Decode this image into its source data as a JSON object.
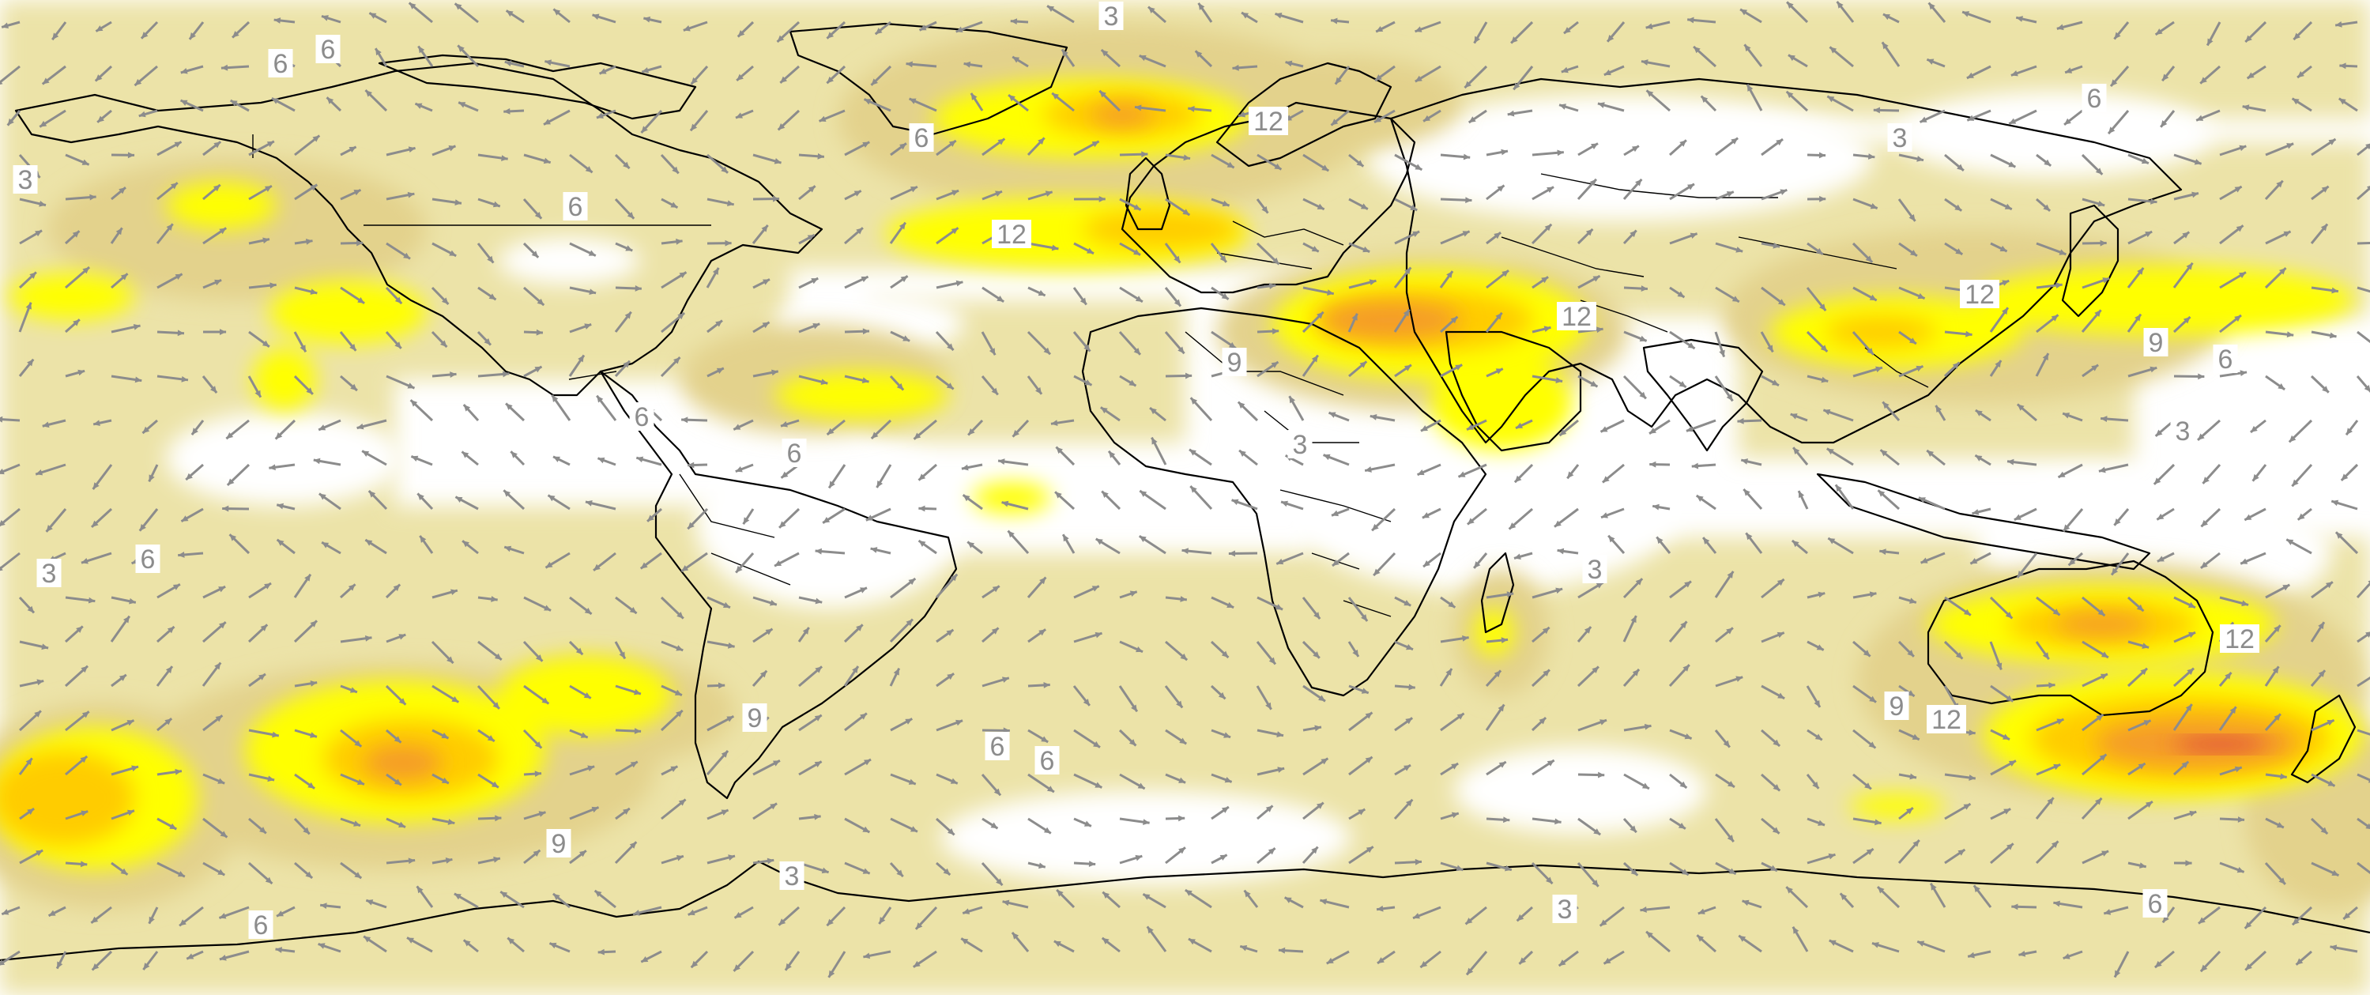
{
  "map": {
    "colors": {
      "background": "#ffffff",
      "level_3": "#ece3a8",
      "level_6": "#e3d28c",
      "level_9": "#ffff00",
      "level_12": "#ffcc00",
      "level_15": "#f49b2a",
      "level_18": "#e0503a",
      "vector": "#8c8c8c",
      "coastline": "#000000"
    },
    "contour_levels": [
      3,
      6,
      9,
      12,
      15,
      18
    ],
    "contour_labels": [
      {
        "text": "3",
        "region": "north-pacific-west"
      },
      {
        "text": "6",
        "region": "arctic-canada"
      },
      {
        "text": "6",
        "region": "arctic-canada-east"
      },
      {
        "text": "3",
        "region": "greenland-north"
      },
      {
        "text": "6",
        "region": "greenland-west"
      },
      {
        "text": "12",
        "region": "north-atlantic"
      },
      {
        "text": "12",
        "region": "norwegian-sea"
      },
      {
        "text": "6",
        "region": "hudson-bay"
      },
      {
        "text": "3",
        "region": "siberia"
      },
      {
        "text": "6",
        "region": "arctic-siberia-east"
      },
      {
        "text": "12",
        "region": "middle-east"
      },
      {
        "text": "9",
        "region": "north-africa"
      },
      {
        "text": "12",
        "region": "east-asia"
      },
      {
        "text": "9",
        "region": "west-pacific"
      },
      {
        "text": "6",
        "region": "west-pacific-east"
      },
      {
        "text": "3",
        "region": "west-pacific-south"
      },
      {
        "text": "6",
        "region": "caribbean"
      },
      {
        "text": "6",
        "region": "venezuela"
      },
      {
        "text": "3",
        "region": "central-africa"
      },
      {
        "text": "3",
        "region": "east-pacific"
      },
      {
        "text": "6",
        "region": "east-pacific-2"
      },
      {
        "text": "3",
        "region": "indian-ocean"
      },
      {
        "text": "12",
        "region": "australia-east"
      },
      {
        "text": "9",
        "region": "south-indian-ocean"
      },
      {
        "text": "12",
        "region": "south-of-australia"
      },
      {
        "text": "9",
        "region": "argentina"
      },
      {
        "text": "6",
        "region": "south-atlantic"
      },
      {
        "text": "6",
        "region": "south-atlantic-2"
      },
      {
        "text": "9",
        "region": "south-pacific"
      },
      {
        "text": "3",
        "region": "antarctic-peninsula"
      },
      {
        "text": "6",
        "region": "southern-ocean-west"
      },
      {
        "text": "3",
        "region": "southern-ocean-indian"
      },
      {
        "text": "6",
        "region": "southern-ocean-east"
      }
    ]
  }
}
